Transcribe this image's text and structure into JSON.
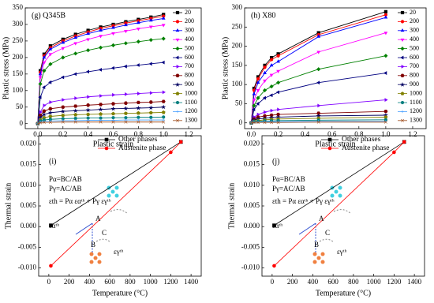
{
  "chart_data": [
    {
      "type": "line",
      "title": "(g) Q345B",
      "xlabel": "Plastic strain",
      "ylabel": "Plastic stress (MPa)",
      "xlim": [
        -0.1,
        1.3
      ],
      "xticks": [
        {
          "value": 0,
          "label": "0.0"
        },
        0.2,
        0.4,
        0.6,
        0.8,
        {
          "value": 1,
          "label": "1.0"
        },
        1.2
      ],
      "ylim": [
        -15,
        350
      ],
      "yticks": [
        0,
        50,
        100,
        150,
        200,
        250,
        300,
        350
      ],
      "legend": "right",
      "x": [
        0,
        0.02,
        0.05,
        0.1,
        0.2,
        0.3,
        0.4,
        0.5,
        0.6,
        0.7,
        0.8,
        0.9,
        1.0
      ],
      "series": [
        {
          "name": "20",
          "color": "#000000",
          "marker": "square",
          "values": [
            0,
            160,
            210,
            235,
            255,
            270,
            282,
            292,
            300,
            308,
            315,
            322,
            330
          ]
        },
        {
          "name": "200",
          "color": "#ff0000",
          "marker": "circle",
          "values": [
            0,
            155,
            205,
            230,
            250,
            265,
            277,
            288,
            296,
            304,
            311,
            318,
            325
          ]
        },
        {
          "name": "300",
          "color": "#0000ff",
          "marker": "triangle-up",
          "values": [
            0,
            150,
            200,
            225,
            245,
            260,
            272,
            282,
            290,
            298,
            305,
            312,
            318
          ]
        },
        {
          "name": "400",
          "color": "#ff00ff",
          "marker": "triangle-down",
          "values": [
            0,
            140,
            185,
            210,
            228,
            243,
            255,
            265,
            273,
            280,
            287,
            293,
            298
          ]
        },
        {
          "name": "500",
          "color": "#008000",
          "marker": "diamond",
          "values": [
            0,
            120,
            160,
            180,
            200,
            212,
            222,
            230,
            237,
            243,
            248,
            253,
            257
          ]
        },
        {
          "name": "600",
          "color": "#000080",
          "marker": "triangle-left",
          "values": [
            0,
            80,
            110,
            125,
            140,
            150,
            157,
            163,
            168,
            173,
            177,
            181,
            185
          ]
        },
        {
          "name": "700",
          "color": "#8000ff",
          "marker": "triangle-right",
          "values": [
            0,
            35,
            55,
            65,
            72,
            77,
            81,
            84,
            87,
            89,
            91,
            93,
            95
          ]
        },
        {
          "name": "800",
          "color": "#800000",
          "marker": "hexagon",
          "values": [
            0,
            25,
            38,
            45,
            50,
            53,
            56,
            58,
            60,
            62,
            64,
            65,
            67
          ]
        },
        {
          "name": "900",
          "color": "#000060",
          "marker": "star",
          "values": [
            0,
            18,
            28,
            33,
            37,
            39,
            41,
            43,
            45,
            46,
            47,
            48,
            50
          ]
        },
        {
          "name": "1000",
          "color": "#808000",
          "marker": "pentagon",
          "values": [
            0,
            12,
            18,
            22,
            25,
            27,
            28,
            29,
            30,
            31,
            32,
            33,
            34
          ]
        },
        {
          "name": "1100",
          "color": "#008080",
          "marker": "circle",
          "values": [
            0,
            8,
            11,
            13,
            15,
            16,
            17,
            17,
            18,
            18,
            19,
            19,
            20
          ]
        },
        {
          "name": "1200",
          "color": "#4aa0ff",
          "marker": "plus",
          "values": [
            0,
            5,
            7,
            8,
            9,
            9,
            10,
            10,
            10,
            11,
            11,
            11,
            11
          ]
        },
        {
          "name": "1300",
          "color": "#a05020",
          "marker": "x",
          "values": [
            0,
            3,
            4,
            4,
            5,
            5,
            5,
            5,
            5,
            5,
            5,
            5,
            5
          ]
        }
      ]
    },
    {
      "type": "line",
      "title": "(h) X80",
      "xlabel": "Plastic strain",
      "ylabel": "Plastic stress (MPa)",
      "xlim": [
        -0.05,
        1.3
      ],
      "xticks": [
        {
          "value": 0,
          "label": "0.0"
        },
        0.2,
        0.4,
        0.6,
        0.8,
        {
          "value": 1,
          "label": "1.0"
        },
        1.2
      ],
      "ylim": [
        -15,
        300
      ],
      "yticks": [
        0,
        50,
        100,
        150,
        200,
        250,
        300
      ],
      "legend": "right",
      "x": [
        0,
        0.02,
        0.05,
        0.1,
        0.15,
        0.2,
        0.5,
        1.0
      ],
      "series": [
        {
          "name": "20",
          "color": "#000000",
          "marker": "square",
          "values": [
            0,
            90,
            120,
            150,
            170,
            180,
            235,
            290
          ]
        },
        {
          "name": "200",
          "color": "#ff0000",
          "marker": "circle",
          "values": [
            0,
            85,
            115,
            145,
            165,
            175,
            230,
            282
          ]
        },
        {
          "name": "300",
          "color": "#0000ff",
          "marker": "triangle-up",
          "values": [
            0,
            75,
            105,
            130,
            150,
            160,
            225,
            275
          ]
        },
        {
          "name": "400",
          "color": "#ff00ff",
          "marker": "triangle-down",
          "values": [
            0,
            60,
            85,
            110,
            125,
            135,
            185,
            235
          ]
        },
        {
          "name": "500",
          "color": "#008000",
          "marker": "diamond",
          "values": [
            0,
            45,
            65,
            85,
            95,
            105,
            140,
            175
          ]
        },
        {
          "name": "600",
          "color": "#000080",
          "marker": "triangle-left",
          "values": [
            0,
            35,
            50,
            65,
            72,
            80,
            105,
            130
          ]
        },
        {
          "name": "700",
          "color": "#8000ff",
          "marker": "triangle-right",
          "values": [
            0,
            15,
            22,
            28,
            32,
            35,
            45,
            60
          ]
        },
        {
          "name": "800",
          "color": "#800000",
          "marker": "hexagon",
          "values": [
            0,
            10,
            15,
            18,
            20,
            22,
            25,
            30
          ]
        },
        {
          "name": "900",
          "color": "#000060",
          "marker": "star",
          "values": [
            0,
            7,
            10,
            12,
            14,
            15,
            18,
            20
          ]
        },
        {
          "name": "1000",
          "color": "#808000",
          "marker": "pentagon",
          "values": [
            0,
            4,
            6,
            8,
            9,
            10,
            12,
            15
          ]
        },
        {
          "name": "1100",
          "color": "#008080",
          "marker": "circle",
          "values": [
            0,
            3,
            4,
            5,
            5,
            6,
            7,
            8
          ]
        },
        {
          "name": "1200",
          "color": "#4aa0ff",
          "marker": "plus",
          "values": [
            0,
            2,
            2,
            3,
            3,
            3,
            4,
            4
          ]
        },
        {
          "name": "1300",
          "color": "#a05020",
          "marker": "x",
          "values": [
            0,
            1,
            1,
            1,
            1,
            1,
            2,
            2
          ]
        }
      ]
    },
    {
      "type": "line",
      "title": "(i)",
      "xlabel": "Temperature (°C)",
      "ylabel": "Thermal strain",
      "xlim": [
        -100,
        1500
      ],
      "xticks": [
        0,
        200,
        400,
        600,
        800,
        1000,
        1200,
        1400
      ],
      "ylim": [
        -0.012,
        0.022
      ],
      "yticks": [
        {
          "value": -0.01,
          "label": "-0.010"
        },
        {
          "value": -0.005,
          "label": "-0.005"
        },
        {
          "value": 0,
          "label": "0.000"
        },
        {
          "value": 0.005,
          "label": "0.005"
        },
        {
          "value": 0.01,
          "label": "0.010"
        },
        {
          "value": 0.015,
          "label": "0.015"
        },
        {
          "value": 0.02,
          "label": "0.020"
        }
      ],
      "legend": "top",
      "series": [
        {
          "name": "Other phases",
          "color": "#000000",
          "marker": "square",
          "x": [
            20,
            1300
          ],
          "values": [
            0.0003,
            0.0205
          ]
        },
        {
          "name": "Austenite phase",
          "color": "#ff0000",
          "marker": "circle",
          "x": [
            20,
            1200,
            1300
          ],
          "values": [
            -0.0095,
            0.018,
            0.0205
          ]
        }
      ],
      "annotations": [
        "Pα=BC/AB",
        "Pγ=AC/AB",
        "εth = Pα εαᵗʰ + Pγ εγᵗʰ",
        "εαᵗʰ",
        "A",
        "C",
        "B",
        "εγᵗʰ"
      ]
    },
    {
      "type": "line",
      "title": "(j)",
      "xlabel": "Temperature (°C)",
      "ylabel": "Thermal strain",
      "xlim": [
        -100,
        1500
      ],
      "xticks": [
        0,
        200,
        400,
        600,
        800,
        1000,
        1200,
        1400
      ],
      "ylim": [
        -0.012,
        0.022
      ],
      "yticks": [
        {
          "value": -0.01,
          "label": "-0.010"
        },
        {
          "value": -0.005,
          "label": "-0.005"
        },
        {
          "value": 0,
          "label": "0.000"
        },
        {
          "value": 0.005,
          "label": "0.005"
        },
        {
          "value": 0.01,
          "label": "0.010"
        },
        {
          "value": 0.015,
          "label": "0.015"
        },
        {
          "value": 0.02,
          "label": "0.020"
        }
      ],
      "legend": "top",
      "series": [
        {
          "name": "Other phases",
          "color": "#000000",
          "marker": "square",
          "x": [
            20,
            1300
          ],
          "values": [
            0.0003,
            0.0205
          ]
        },
        {
          "name": "Austenite phase",
          "color": "#ff0000",
          "marker": "circle",
          "x": [
            20,
            1200,
            1300
          ],
          "values": [
            -0.0095,
            0.018,
            0.0205
          ]
        }
      ],
      "annotations": [
        "Pα=BC/AB",
        "Pγ=AC/AB",
        "εth = Pα εαᵗʰ + Pγ εγᵗʰ",
        "εαᵗʰ",
        "A",
        "C",
        "B",
        "εγᵗʰ"
      ]
    }
  ]
}
